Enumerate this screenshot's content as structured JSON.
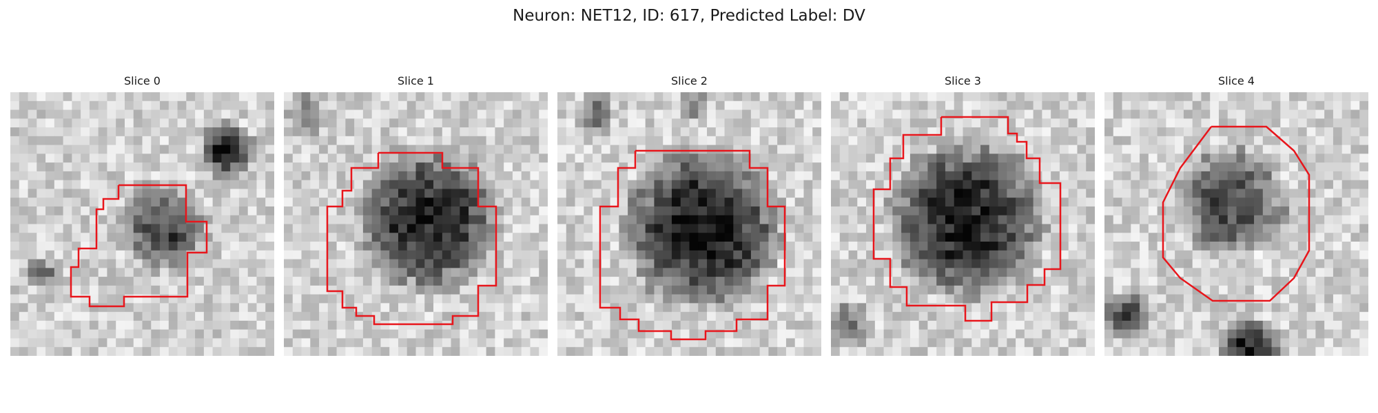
{
  "figure": {
    "title": "Neuron: NET12, ID: 617, Predicted Label: DV"
  },
  "colors": {
    "contour": "#e8151b",
    "background": "#ffffff"
  },
  "panels": [
    {
      "title": "Slice 0"
    },
    {
      "title": "Slice 1"
    },
    {
      "title": "Slice 2"
    },
    {
      "title": "Slice 3"
    },
    {
      "title": "Slice 4"
    }
  ]
}
